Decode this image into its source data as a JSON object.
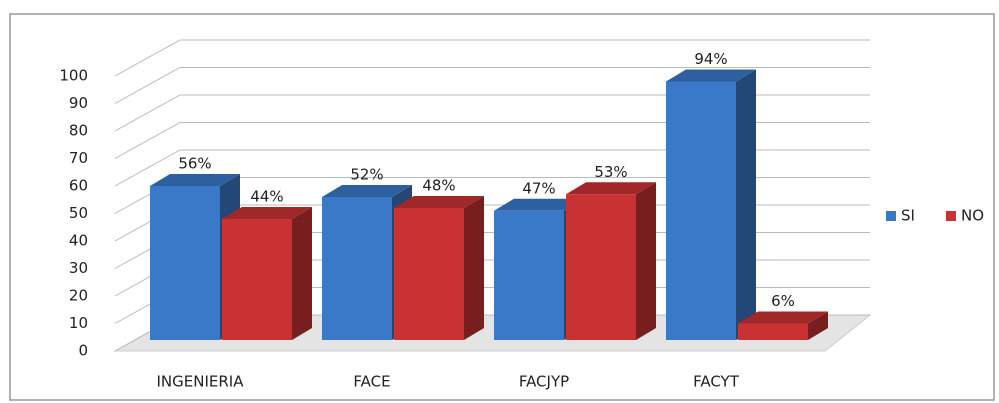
{
  "chart_data": {
    "type": "bar",
    "categories": [
      "INGENIERIA",
      "FACE",
      "FACJYP",
      "FACYT"
    ],
    "series": [
      {
        "name": "SI",
        "color": "#3a78c8",
        "values": [
          56,
          52,
          47,
          94
        ],
        "value_labels": [
          "56%",
          "52%",
          "47%",
          "94%"
        ]
      },
      {
        "name": "NO",
        "color": "#c83232",
        "values": [
          44,
          48,
          53,
          6
        ],
        "value_labels": [
          "44%",
          "48%",
          "53%",
          "6%"
        ]
      }
    ],
    "ylim": [
      0,
      100
    ],
    "yticks": [
      0,
      10,
      20,
      30,
      40,
      50,
      60,
      70,
      80,
      90,
      100
    ],
    "grid": true,
    "legend": "right"
  }
}
